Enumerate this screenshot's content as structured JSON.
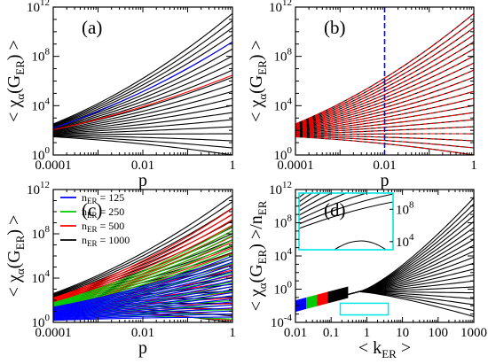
{
  "chart_data": [
    {
      "panel": "(a)",
      "type": "line",
      "xlabel": "p",
      "ylabel": "< χ_α(G_ER) >",
      "xscale": "log",
      "yscale": "log",
      "xlim": [
        0.0001,
        1
      ],
      "ylim": [
        1,
        1000000000000.0
      ],
      "xticks": [
        "0.0001",
        "0.01",
        "1"
      ],
      "yticks": [
        "10^0",
        "10^4",
        "10^8",
        "10^12"
      ],
      "curve_family": {
        "count": 21,
        "p_values": [
          0.0001,
          1
        ],
        "y_start_range": [
          30,
          330
        ],
        "y_end_range": [
          1,
          300000000000.0
        ],
        "pivot_y_at_p0001": 60
      },
      "series": [
        {
          "color": "#000000",
          "role": "family of 21 curves"
        },
        {
          "color": "#0000ff",
          "role": "highlighted curve",
          "x": [
            0.0001,
            1
          ],
          "y": [
            150,
            1500000000.0
          ]
        },
        {
          "color": "#ff0000",
          "role": "highlighted curve",
          "x": [
            0.0001,
            1
          ],
          "y": [
            110,
            3000000.0
          ]
        }
      ]
    },
    {
      "panel": "(b)",
      "type": "line",
      "xlabel": "p",
      "ylabel": "< χ_α(G_ER) >",
      "xscale": "log",
      "yscale": "log",
      "xlim": [
        0.0001,
        1
      ],
      "ylim": [
        1,
        1000000000000.0
      ],
      "xticks": [
        "0.0001",
        "0.01",
        "1"
      ],
      "yticks": [
        "10^0",
        "10^4",
        "10^8",
        "10^12"
      ],
      "curve_family": {
        "count": 21,
        "y_start_range": [
          30,
          330
        ],
        "y_end_range": [
          1,
          300000000000.0
        ]
      },
      "series": [
        {
          "color": "#000000",
          "role": "family of 21 curves"
        },
        {
          "color": "#ff0000",
          "style": "dashed",
          "role": "overlay of each curve"
        }
      ],
      "vline": {
        "x": 0.01,
        "color": "#0000ff",
        "style": "dashed"
      }
    },
    {
      "panel": "(c)",
      "type": "line",
      "xlabel": "p",
      "ylabel": "< χ_α(G_ER) >",
      "xscale": "log",
      "yscale": "log",
      "xlim": [
        0.0001,
        1
      ],
      "ylim": [
        1,
        1000000000000.0
      ],
      "xticks": [
        "0.0001",
        "0.01",
        "1"
      ],
      "yticks": [
        "10^0",
        "10^4",
        "10^8",
        "10^12"
      ],
      "legend": {
        "position": "top-left",
        "entries": [
          {
            "label": "n_ER = 125",
            "color": "#0000ff"
          },
          {
            "label": "n_ER = 250",
            "color": "#00cc00"
          },
          {
            "label": "n_ER = 500",
            "color": "#ff0000"
          },
          {
            "label": "n_ER = 1000",
            "color": "#000000"
          }
        ]
      },
      "series": [
        {
          "name": "n_ER = 125",
          "color": "#0000ff",
          "y_start": 6,
          "y_end_range": [
            3,
            1000000.0
          ]
        },
        {
          "name": "n_ER = 250",
          "color": "#00cc00",
          "y_start": 15,
          "y_end_range": [
            2,
            500000000.0
          ]
        },
        {
          "name": "n_ER = 500",
          "color": "#ff0000",
          "y_start": 40,
          "y_end_range": [
            1.5,
            20000000000.0
          ]
        },
        {
          "name": "n_ER = 1000",
          "color": "#000000",
          "y_start": 100,
          "y_end_range": [
            1,
            300000000000.0
          ]
        }
      ]
    },
    {
      "panel": "(d)",
      "type": "line",
      "xlabel": "< k_ER >",
      "ylabel": "< χ_α(G_ER) >/n_ER",
      "xscale": "log",
      "yscale": "log",
      "xlim": [
        0.01,
        1000
      ],
      "ylim": [
        0.0001,
        1000000000000.0
      ],
      "xticks": [
        "0.01",
        "0.1",
        "1",
        "10",
        "100",
        "1000"
      ],
      "yticks": [
        "10^-4",
        "10^0",
        "10^4",
        "10^8",
        "10^12"
      ],
      "collapse": {
        "start": [
          0.01,
          0.005
        ],
        "knee": [
          0.6,
          0.5
        ],
        "end_range": [
          0.0005,
          100000000000.0
        ],
        "count": 21
      },
      "segments": [
        {
          "color": "#0000ff",
          "x": [
            0.01,
            0.02
          ]
        },
        {
          "color": "#00cc00",
          "x": [
            0.02,
            0.04
          ]
        },
        {
          "color": "#ff0000",
          "x": [
            0.04,
            0.08
          ]
        },
        {
          "color": "#000000",
          "x": [
            0.08,
            0.3
          ]
        }
      ],
      "highlight_box": {
        "color": "#00e5e5",
        "x": [
          0.18,
          4
        ],
        "y": [
          0.0008,
          0.02
        ]
      },
      "inset": {
        "color": "#00e5e5",
        "position": "top-left",
        "yticks": [
          "10^4",
          "10^8"
        ],
        "ylim": [
          1000,
          10000000000.0
        ]
      }
    }
  ]
}
